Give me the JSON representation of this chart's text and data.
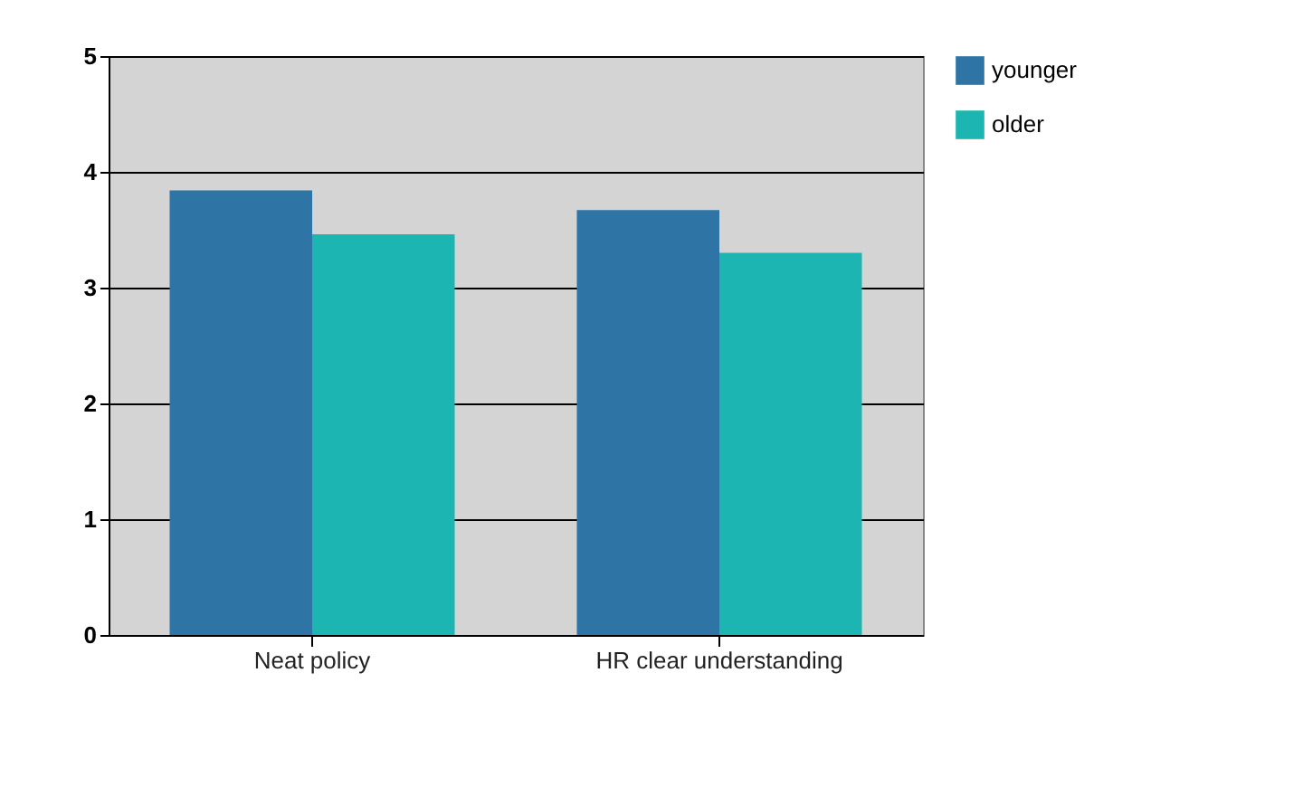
{
  "chart_data": {
    "type": "bar",
    "categories": [
      "Neat policy",
      "HR clear understanding"
    ],
    "series": [
      {
        "name": "younger",
        "color": "#2e75a6",
        "values": [
          3.84,
          3.67
        ]
      },
      {
        "name": "older",
        "color": "#1db5b2",
        "values": [
          3.46,
          3.3
        ]
      }
    ],
    "ylim": [
      0,
      5
    ],
    "yticks": [
      0,
      1,
      2,
      3,
      4,
      5
    ],
    "grid": "y",
    "legend": "right"
  }
}
